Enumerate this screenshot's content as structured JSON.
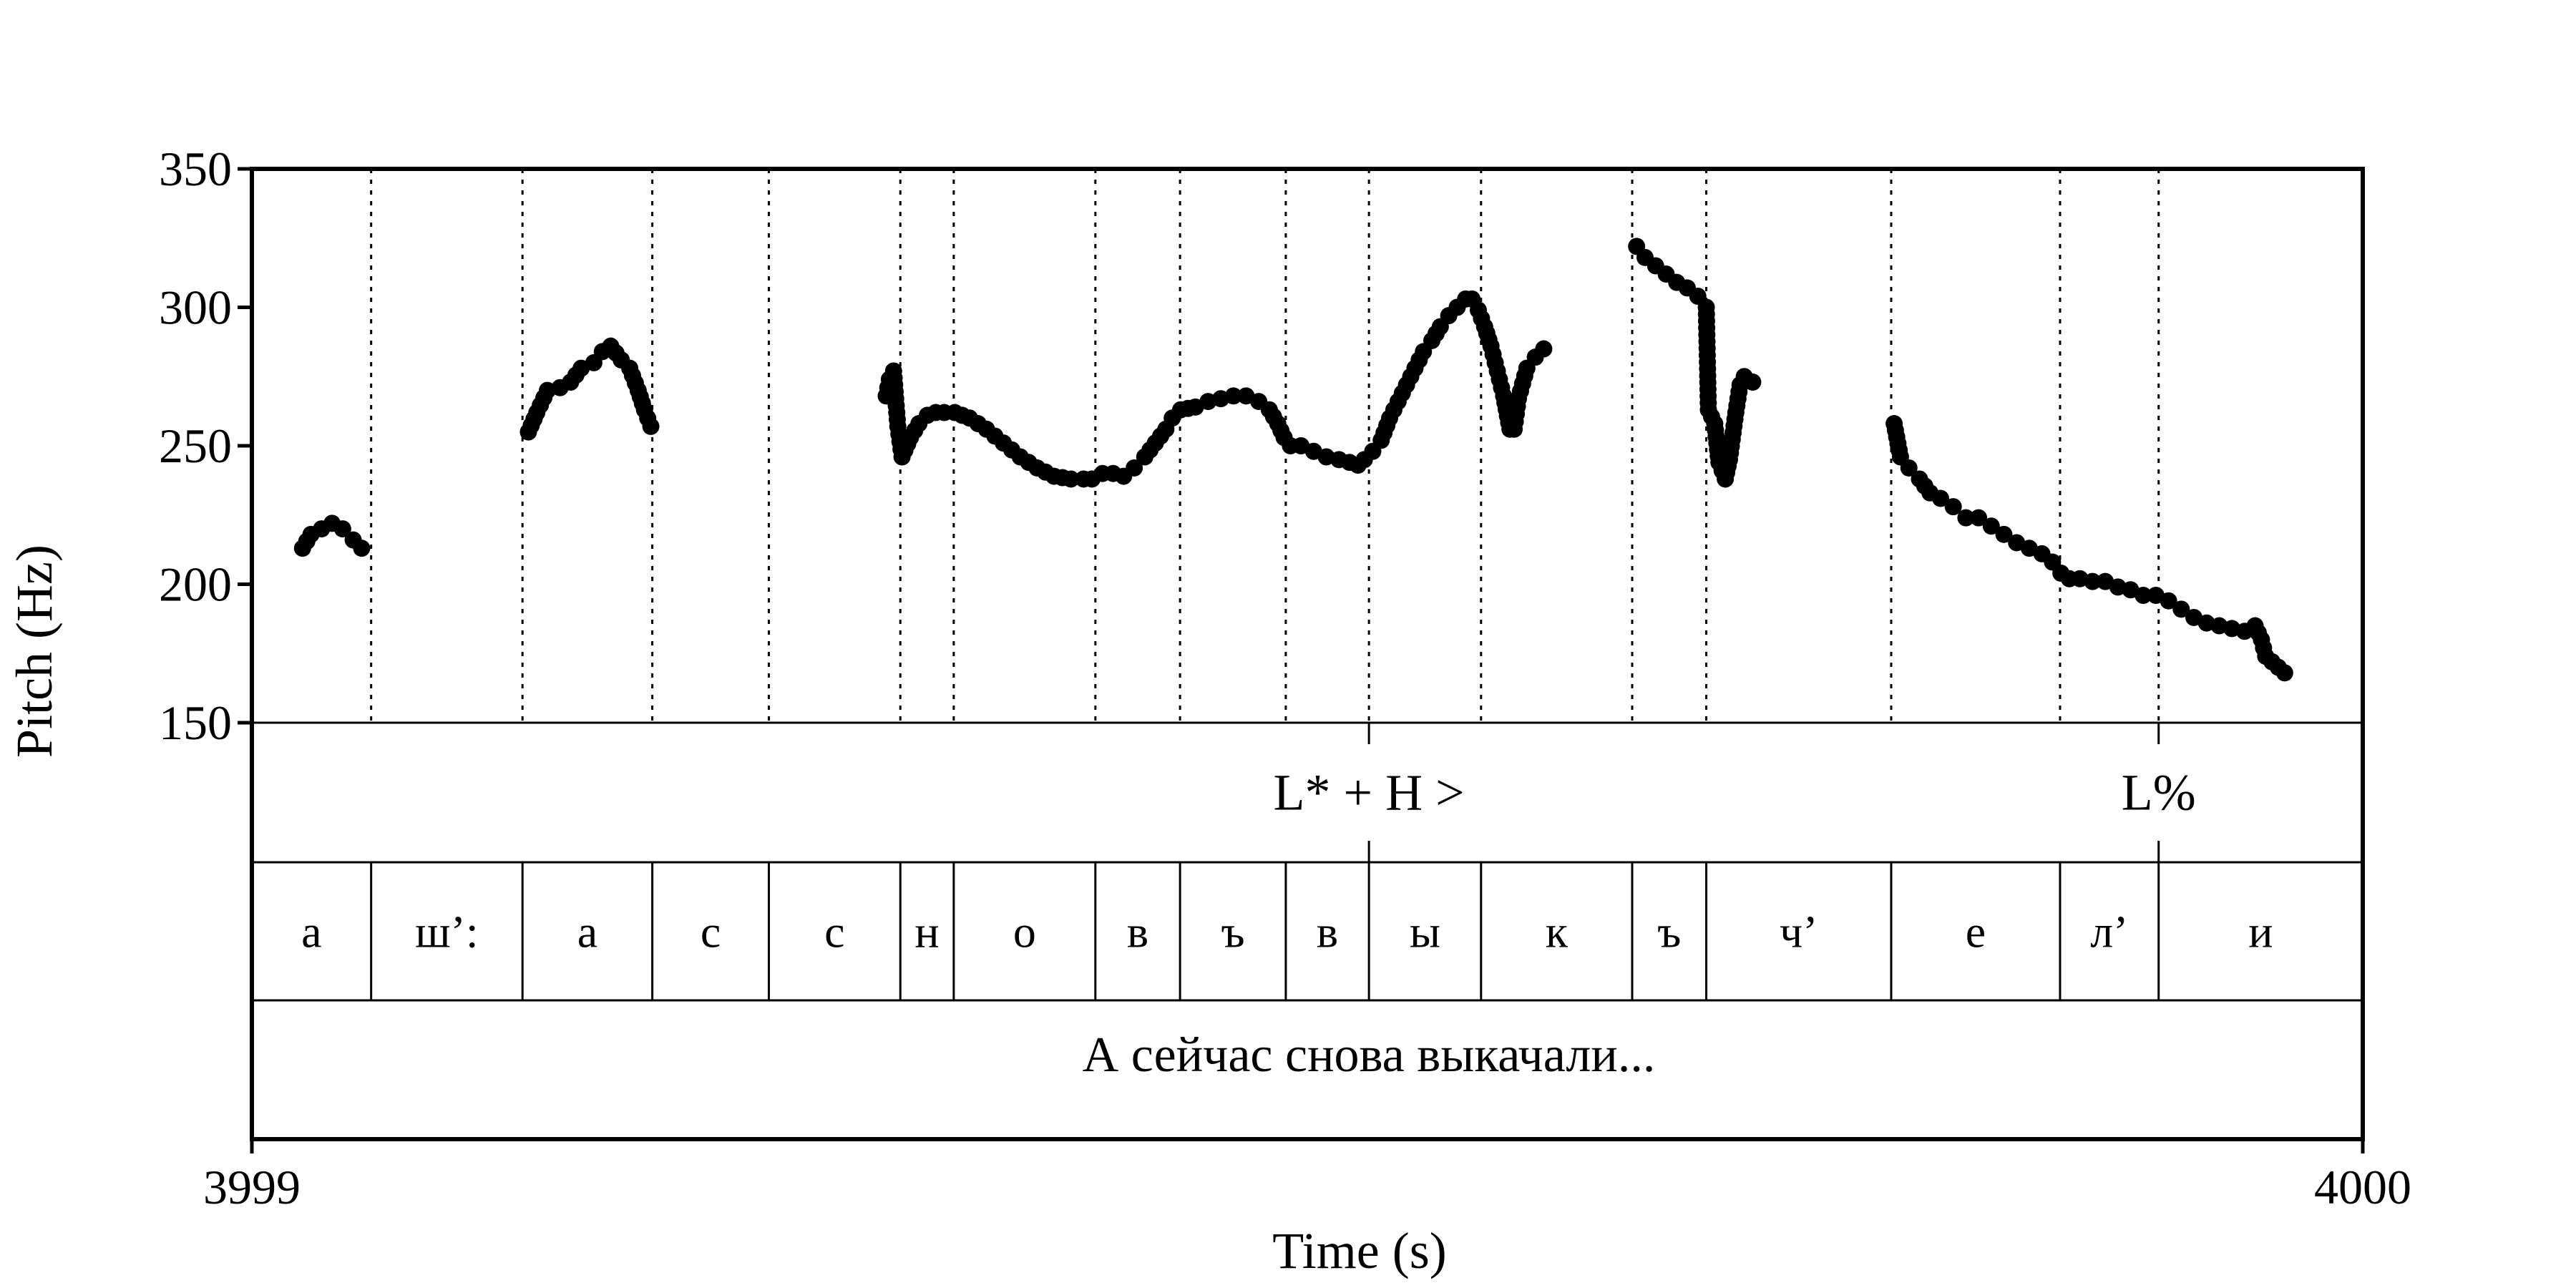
{
  "chart_data": {
    "type": "scatter",
    "xlabel": "Time (s)",
    "ylabel": "Pitch (Hz)",
    "xlim": [
      3999,
      4000
    ],
    "ylim": [
      150,
      350
    ],
    "x_tick_labels": [
      "3999",
      "4000"
    ],
    "y_ticks": [
      150,
      200,
      250,
      300,
      350
    ],
    "y_tick_labels": [
      "150",
      "200",
      "250",
      "300",
      "350"
    ],
    "grid": "vertical dotted lines at segment boundaries",
    "segment_boundaries": [
      0.0565,
      0.1282,
      0.1897,
      0.2449,
      0.3072,
      0.3325,
      0.3996,
      0.4397,
      0.4898,
      0.5292,
      0.5823,
      0.6539,
      0.689,
      0.7766,
      0.8566,
      0.9033
    ],
    "tone_tier": [
      {
        "label": "L* + H >",
        "time": 0.5292
      },
      {
        "label": "L%",
        "time": 0.9033
      }
    ],
    "segments": [
      {
        "label": "а",
        "start": 0.0,
        "end": 0.0565
      },
      {
        "label": "ш’:",
        "start": 0.0565,
        "end": 0.1282
      },
      {
        "label": "а",
        "start": 0.1282,
        "end": 0.1897
      },
      {
        "label": "с",
        "start": 0.1897,
        "end": 0.2449
      },
      {
        "label": "с",
        "start": 0.2449,
        "end": 0.3072
      },
      {
        "label": "н",
        "start": 0.3072,
        "end": 0.3325
      },
      {
        "label": "о",
        "start": 0.3325,
        "end": 0.3996
      },
      {
        "label": "в",
        "start": 0.3996,
        "end": 0.4397
      },
      {
        "label": "ъ",
        "start": 0.4397,
        "end": 0.4898
      },
      {
        "label": "в",
        "start": 0.4898,
        "end": 0.5292
      },
      {
        "label": "ы",
        "start": 0.5292,
        "end": 0.5823
      },
      {
        "label": "к",
        "start": 0.5823,
        "end": 0.6539
      },
      {
        "label": "ъ",
        "start": 0.6539,
        "end": 0.689
      },
      {
        "label": "ч’",
        "start": 0.689,
        "end": 0.7766
      },
      {
        "label": "е",
        "start": 0.7766,
        "end": 0.8566
      },
      {
        "label": "л’",
        "start": 0.8566,
        "end": 0.9033
      },
      {
        "label": "и",
        "start": 0.9033,
        "end": 1.0
      }
    ],
    "sentence": "А сейчас снова выкачали...",
    "pitch_contours": [
      [
        [
          0.024,
          213
        ],
        [
          0.028,
          218
        ],
        [
          0.033,
          220
        ],
        [
          0.038,
          222
        ],
        [
          0.043,
          220
        ],
        [
          0.048,
          216
        ],
        [
          0.052,
          213
        ]
      ],
      [
        [
          0.131,
          255
        ],
        [
          0.135,
          262
        ],
        [
          0.14,
          270
        ],
        [
          0.146,
          271
        ],
        [
          0.151,
          273
        ],
        [
          0.156,
          278
        ],
        [
          0.162,
          280
        ],
        [
          0.166,
          284
        ],
        [
          0.17,
          286
        ],
        [
          0.175,
          281
        ],
        [
          0.179,
          278
        ],
        [
          0.183,
          270
        ],
        [
          0.186,
          263
        ],
        [
          0.189,
          257
        ]
      ],
      [
        [
          0.3005,
          268
        ],
        [
          0.302,
          274
        ],
        [
          0.304,
          277
        ],
        [
          0.306,
          257
        ],
        [
          0.308,
          246
        ],
        [
          0.312,
          253
        ],
        [
          0.316,
          258
        ],
        [
          0.32,
          261
        ],
        [
          0.324,
          262
        ],
        [
          0.328,
          262
        ],
        [
          0.333,
          262
        ],
        [
          0.34,
          260
        ],
        [
          0.348,
          256
        ],
        [
          0.356,
          251
        ],
        [
          0.364,
          246
        ],
        [
          0.372,
          242
        ],
        [
          0.38,
          239
        ],
        [
          0.388,
          238
        ],
        [
          0.394,
          238
        ],
        [
          0.398,
          238
        ],
        [
          0.403,
          240
        ],
        [
          0.408,
          240
        ],
        [
          0.413,
          239
        ],
        [
          0.418,
          242
        ],
        [
          0.423,
          246
        ],
        [
          0.428,
          251
        ],
        [
          0.433,
          256
        ],
        [
          0.436,
          260
        ],
        [
          0.44,
          263
        ],
        [
          0.447,
          264
        ],
        [
          0.453,
          266
        ],
        [
          0.459,
          267
        ],
        [
          0.465,
          268
        ],
        [
          0.471,
          268
        ],
        [
          0.477,
          266
        ],
        [
          0.482,
          263
        ],
        [
          0.486,
          258
        ],
        [
          0.489,
          253
        ],
        [
          0.492,
          250
        ],
        [
          0.497,
          250
        ],
        [
          0.503,
          248
        ],
        [
          0.509,
          246
        ],
        [
          0.515,
          245
        ],
        [
          0.52,
          244
        ],
        [
          0.524,
          243
        ],
        [
          0.527,
          245
        ],
        [
          0.531,
          248
        ],
        [
          0.535,
          252
        ],
        [
          0.539,
          260
        ],
        [
          0.543,
          266
        ],
        [
          0.547,
          272
        ],
        [
          0.551,
          278
        ],
        [
          0.555,
          284
        ],
        [
          0.559,
          288
        ],
        [
          0.563,
          293
        ],
        [
          0.567,
          297
        ],
        [
          0.571,
          300
        ],
        [
          0.575,
          303
        ],
        [
          0.578,
          303
        ],
        [
          0.581,
          299
        ],
        [
          0.584,
          293
        ],
        [
          0.587,
          286
        ],
        [
          0.59,
          277
        ],
        [
          0.593,
          268
        ],
        [
          0.596,
          256
        ],
        [
          0.598,
          256
        ],
        [
          0.6,
          267
        ],
        [
          0.604,
          278
        ],
        [
          0.608,
          282
        ],
        [
          0.612,
          285
        ]
      ],
      [
        [
          0.656,
          322
        ],
        [
          0.66,
          318
        ],
        [
          0.665,
          315
        ],
        [
          0.67,
          312
        ],
        [
          0.675,
          309
        ],
        [
          0.68,
          307
        ],
        [
          0.685,
          304
        ],
        [
          0.689,
          300
        ],
        [
          0.69,
          263
        ],
        [
          0.693,
          258
        ],
        [
          0.695,
          244
        ],
        [
          0.698,
          238
        ],
        [
          0.7,
          245
        ],
        [
          0.703,
          262
        ],
        [
          0.705,
          272
        ],
        [
          0.707,
          275
        ],
        [
          0.711,
          273
        ]
      ],
      [
        [
          0.778,
          258
        ],
        [
          0.781,
          246
        ],
        [
          0.785,
          242
        ],
        [
          0.79,
          238
        ],
        [
          0.795,
          233
        ],
        [
          0.8,
          231
        ],
        [
          0.806,
          228
        ],
        [
          0.812,
          224
        ],
        [
          0.818,
          224
        ],
        [
          0.824,
          221
        ],
        [
          0.83,
          218
        ],
        [
          0.836,
          215
        ],
        [
          0.842,
          213
        ],
        [
          0.848,
          211
        ],
        [
          0.853,
          208
        ],
        [
          0.857,
          204
        ],
        [
          0.861,
          202
        ],
        [
          0.866,
          202
        ],
        [
          0.872,
          201
        ],
        [
          0.878,
          201
        ],
        [
          0.884,
          199
        ],
        [
          0.89,
          198
        ],
        [
          0.896,
          196
        ],
        [
          0.902,
          196
        ],
        [
          0.908,
          194
        ],
        [
          0.914,
          191
        ],
        [
          0.92,
          188
        ],
        [
          0.926,
          186
        ],
        [
          0.932,
          185
        ],
        [
          0.938,
          184
        ],
        [
          0.944,
          183
        ],
        [
          0.949,
          185
        ],
        [
          0.952,
          180
        ],
        [
          0.954,
          174
        ],
        [
          0.957,
          172
        ],
        [
          0.96,
          170
        ],
        [
          0.963,
          168
        ]
      ]
    ]
  }
}
